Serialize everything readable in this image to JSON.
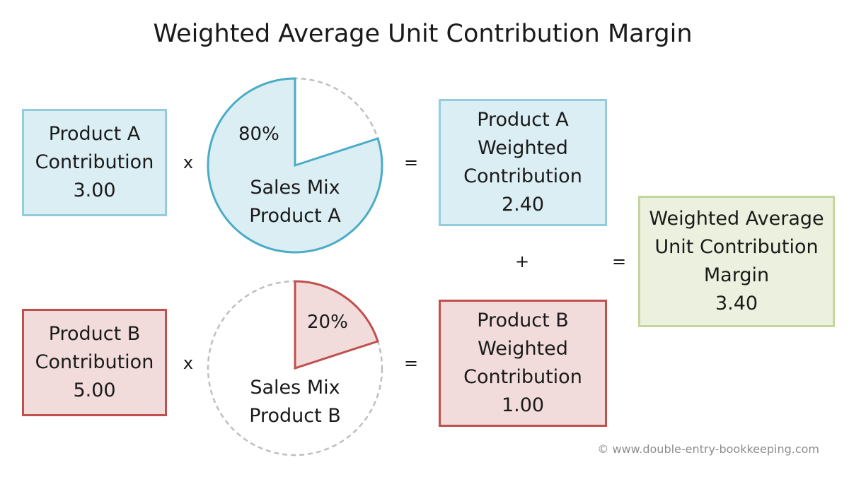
{
  "title": "Weighted Average Unit Contribution Margin",
  "product_a": {
    "contribution": {
      "line1": "Product A",
      "line2": "Contribution",
      "value": "3.00"
    },
    "operator_x": "x",
    "sales_mix": {
      "percent": 80,
      "percent_label": "80%",
      "line1": "Sales Mix",
      "line2": "Product A"
    },
    "operator_eq": "=",
    "weighted": {
      "line1": "Product A",
      "line2": "Weighted",
      "line3": "Contribution",
      "value": "2.40"
    }
  },
  "product_b": {
    "contribution": {
      "line1": "Product B",
      "line2": "Contribution",
      "value": "5.00"
    },
    "operator_x": "x",
    "sales_mix": {
      "percent": 20,
      "percent_label": "20%",
      "line1": "Sales Mix",
      "line2": "Product B"
    },
    "operator_eq": "=",
    "weighted": {
      "line1": "Product B",
      "line2": "Weighted",
      "line3": "Contribution",
      "value": "1.00"
    }
  },
  "operator_plus": "+",
  "operator_total_eq": "=",
  "result": {
    "line1": "Weighted Average",
    "line2": "Unit Contribution",
    "line3": "Margin",
    "value": "3.40"
  },
  "copyright": "© www.double-entry-bookkeeping.com",
  "colors": {
    "blue_fill": "#dbeef4",
    "blue_border": "#4bacc6",
    "red_fill": "#f2dcdb",
    "red_border": "#c0504d",
    "green_fill": "#ebf1de",
    "green_border": "#c3d69b",
    "dashed": "#bfbfbf"
  }
}
